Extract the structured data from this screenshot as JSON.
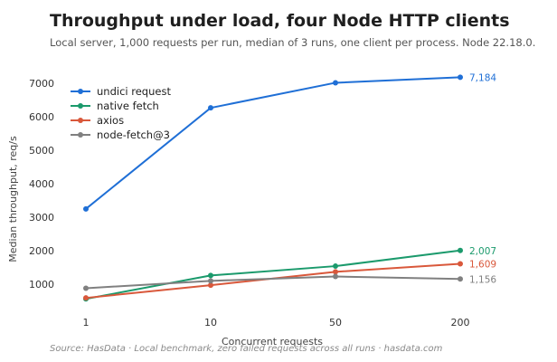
{
  "title": "Throughput under load, four Node HTTP clients",
  "subtitle": "Local server, 1,000 requests per run, median of 3 runs, one client per process. Node 22.18.0.",
  "footer": "Source: HasData  ·  Local benchmark, zero failed requests across all runs  ·  hasdata.com",
  "chart_data": {
    "type": "line",
    "title": "Throughput under load, four Node HTTP clients",
    "xlabel": "Concurrent requests",
    "ylabel": "Median throughput, req/s",
    "categories": [
      "1",
      "10",
      "50",
      "200"
    ],
    "ylim": [
      0,
      7600
    ],
    "yticks": [
      1000,
      2000,
      3000,
      4000,
      5000,
      6000,
      7000
    ],
    "grid": false,
    "legend_position": "top-left",
    "series": [
      {
        "name": "undici request",
        "color": "#1f6fd6",
        "values": [
          3250,
          6270,
          7020,
          7184
        ],
        "end_label": "7,184"
      },
      {
        "name": "native fetch",
        "color": "#1b9a6c",
        "values": [
          560,
          1260,
          1540,
          2007
        ],
        "end_label": "2,007"
      },
      {
        "name": "axios",
        "color": "#d9583b",
        "values": [
          590,
          970,
          1370,
          1609
        ],
        "end_label": "1,609"
      },
      {
        "name": "node-fetch@3",
        "color": "#808080",
        "values": [
          880,
          1100,
          1230,
          1156
        ],
        "end_label": "1,156"
      }
    ]
  }
}
